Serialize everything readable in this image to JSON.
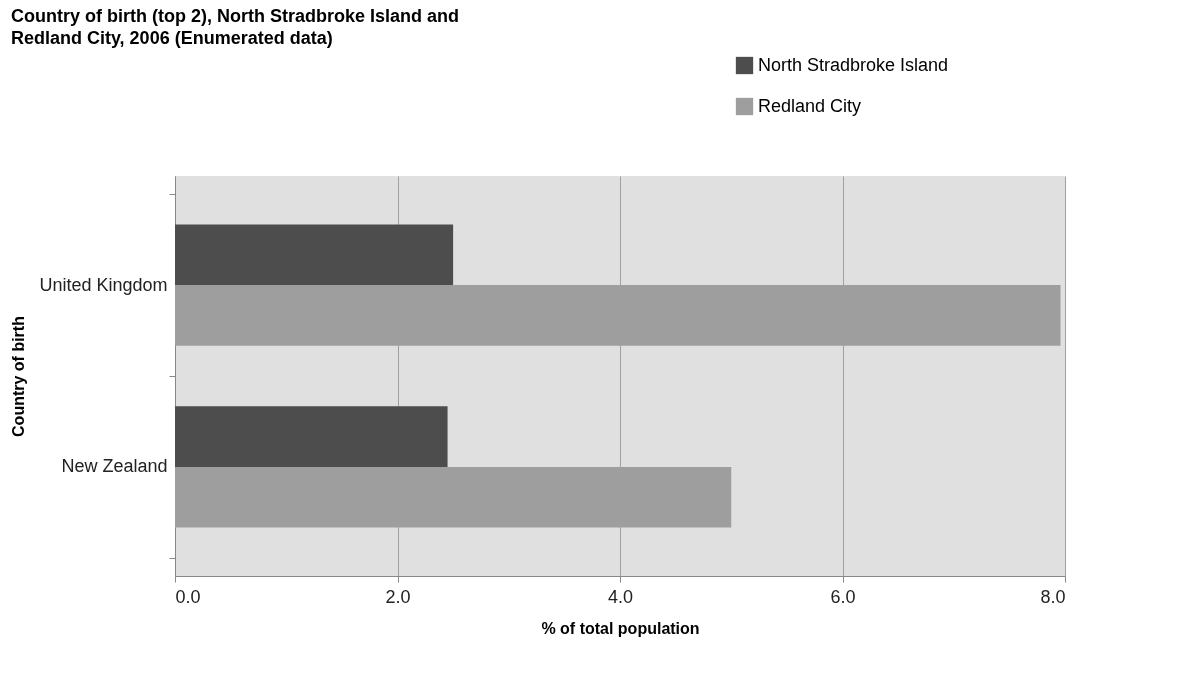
{
  "chart_data": {
    "type": "bar",
    "orientation": "horizontal",
    "title": "Country of birth (top 2), North Stradbroke Island and Redland City, 2006 (Enumerated data)",
    "xlabel": "% of total population",
    "ylabel": "Country of birth",
    "categories": [
      "United Kingdom",
      "New Zealand"
    ],
    "series": [
      {
        "name": "North Stradbroke Island",
        "color": "#4d4d4d",
        "values": [
          2.5,
          2.45
        ]
      },
      {
        "name": "Redland City",
        "color": "#9e9e9e",
        "values": [
          7.96,
          5.0
        ]
      }
    ],
    "xlim": [
      0,
      8
    ],
    "xticks": [
      {
        "value": 0,
        "label": "0.0"
      },
      {
        "value": 2,
        "label": "2.0"
      },
      {
        "value": 4,
        "label": "4.0"
      },
      {
        "value": 6,
        "label": "6.0"
      },
      {
        "value": 8,
        "label": "8.0"
      }
    ],
    "grid": "x",
    "legend": "top right"
  }
}
